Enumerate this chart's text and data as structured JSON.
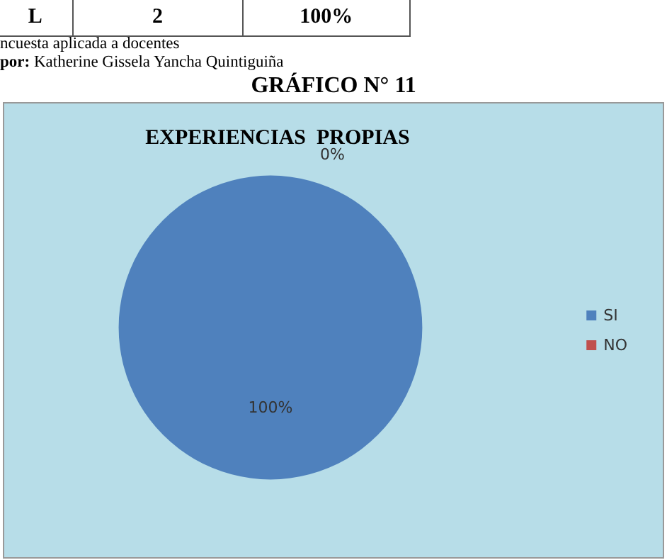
{
  "chart_data": {
    "type": "pie",
    "title": "EXPERIENCIAS  PROPIAS",
    "subtitle": "GRÁFICO N° 11",
    "annotations": [
      "L",
      "2",
      "100%",
      "ncuesta aplicada a docentes",
      "por: Katherine Gissela Yancha Quintiguiña"
    ],
    "categories": [
      "SI",
      "NO"
    ],
    "values": [
      100,
      0
    ],
    "value_labels": [
      "100%",
      "0%"
    ],
    "colors": [
      "#4f81bd",
      "#c0504d"
    ],
    "legend": "right"
  }
}
